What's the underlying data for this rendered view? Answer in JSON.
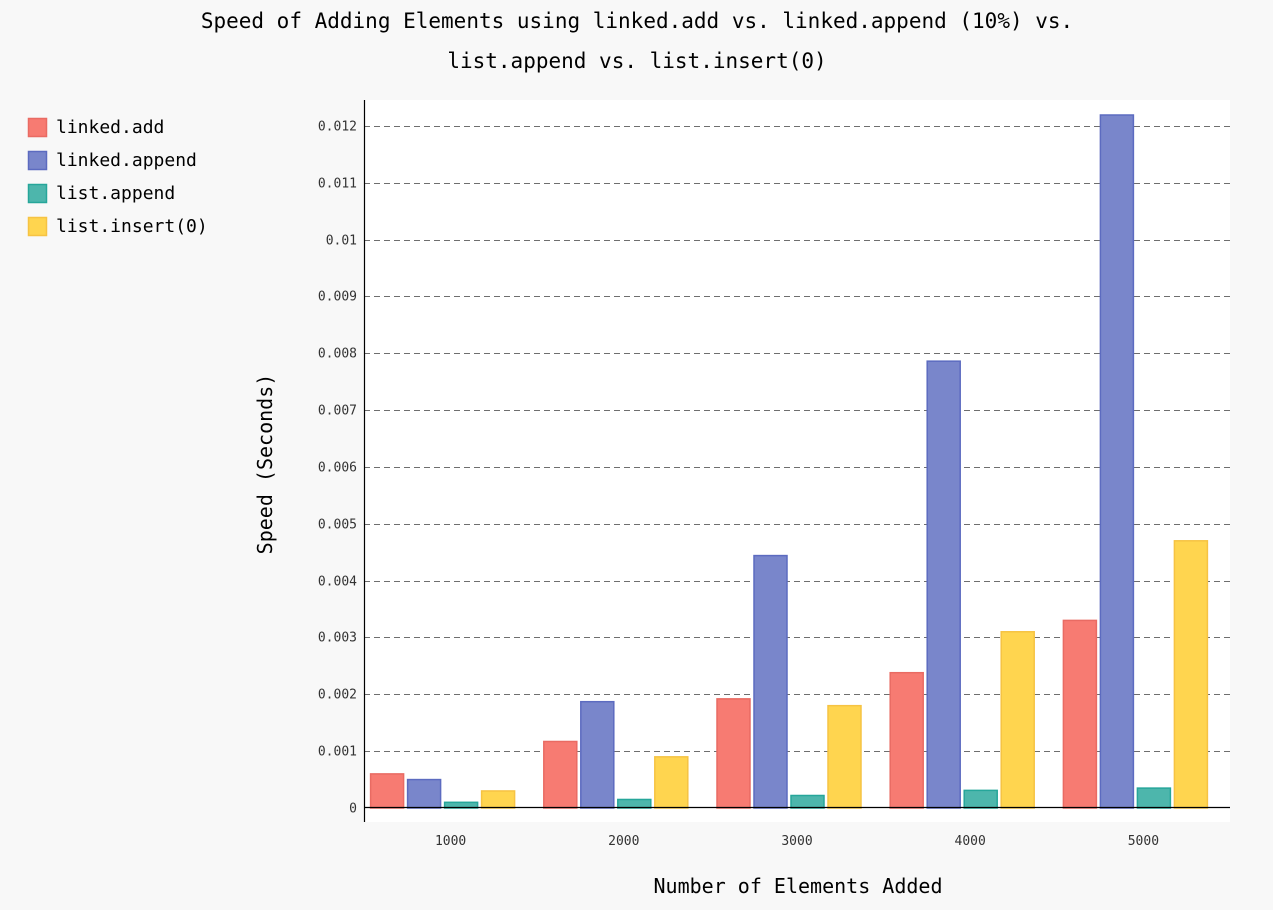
{
  "chart_data": {
    "type": "bar",
    "title_lines": [
      "Speed of Adding Elements using linked.add vs. linked.append (10%) vs.",
      "list.append vs. list.insert(0)"
    ],
    "xlabel": "Number of Elements Added",
    "ylabel": "Speed (Seconds)",
    "categories": [
      "1000",
      "2000",
      "3000",
      "4000",
      "5000"
    ],
    "ylim": [
      0,
      0.0124
    ],
    "yticks": [
      0,
      0.001,
      0.002,
      0.003,
      0.004,
      0.005,
      0.006,
      0.007,
      0.008,
      0.009,
      0.01,
      0.011,
      0.012
    ],
    "ytick_labels": [
      "0",
      "0.001",
      "0.002",
      "0.003",
      "0.004",
      "0.005",
      "0.006",
      "0.007",
      "0.008",
      "0.009",
      "0.01",
      "0.011",
      "0.012"
    ],
    "grid": true,
    "legend_position": "top-left",
    "series": [
      {
        "name": "linked.add",
        "color": "#f77b72",
        "stroke": "#e96b63",
        "values": [
          0.0006,
          0.00117,
          0.00192,
          0.00238,
          0.0033
        ]
      },
      {
        "name": "linked.append",
        "color": "#7986cb",
        "stroke": "#5c6bc0",
        "values": [
          0.0005,
          0.00187,
          0.00444,
          0.00786,
          0.01219
        ]
      },
      {
        "name": "list.append",
        "color": "#4db6ac",
        "stroke": "#26a69a",
        "values": [
          0.0001,
          0.00015,
          0.00022,
          0.00031,
          0.00035
        ]
      },
      {
        "name": "list.insert(0)",
        "color": "#ffd54f",
        "stroke": "#f6c343",
        "values": [
          0.0003,
          0.0009,
          0.0018,
          0.0031,
          0.0047
        ]
      }
    ]
  }
}
